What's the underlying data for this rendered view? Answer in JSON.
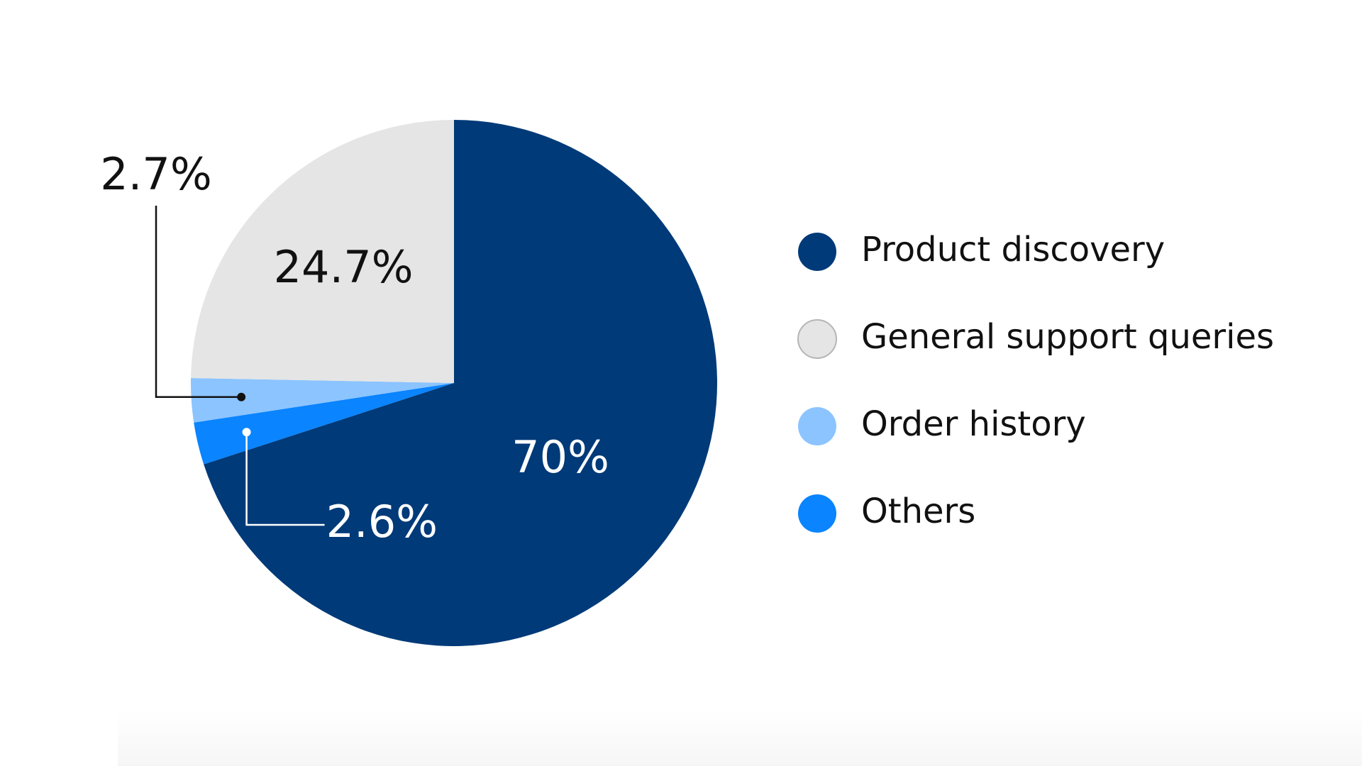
{
  "chart_data": {
    "type": "pie",
    "title": "",
    "start_angle_deg": 0,
    "direction": "clockwise",
    "slices": [
      {
        "label": "Product discovery",
        "value": 70,
        "display": "70%",
        "color": "#003a78",
        "label_color": "#ffffff"
      },
      {
        "label": "Others",
        "value": 2.6,
        "display": "2.6%",
        "color": "#0a84ff",
        "label_color": "#ffffff"
      },
      {
        "label": "Order history",
        "value": 2.7,
        "display": "2.7%",
        "color": "#8cc4ff",
        "label_color": "#111111"
      },
      {
        "label": "General support queries",
        "value": 24.7,
        "display": "24.7%",
        "color": "#e5e5e5",
        "label_color": "#111111"
      }
    ],
    "legend": {
      "placement": "right",
      "items": [
        "Product discovery",
        "General support queries",
        "Order history",
        "Others"
      ]
    }
  }
}
